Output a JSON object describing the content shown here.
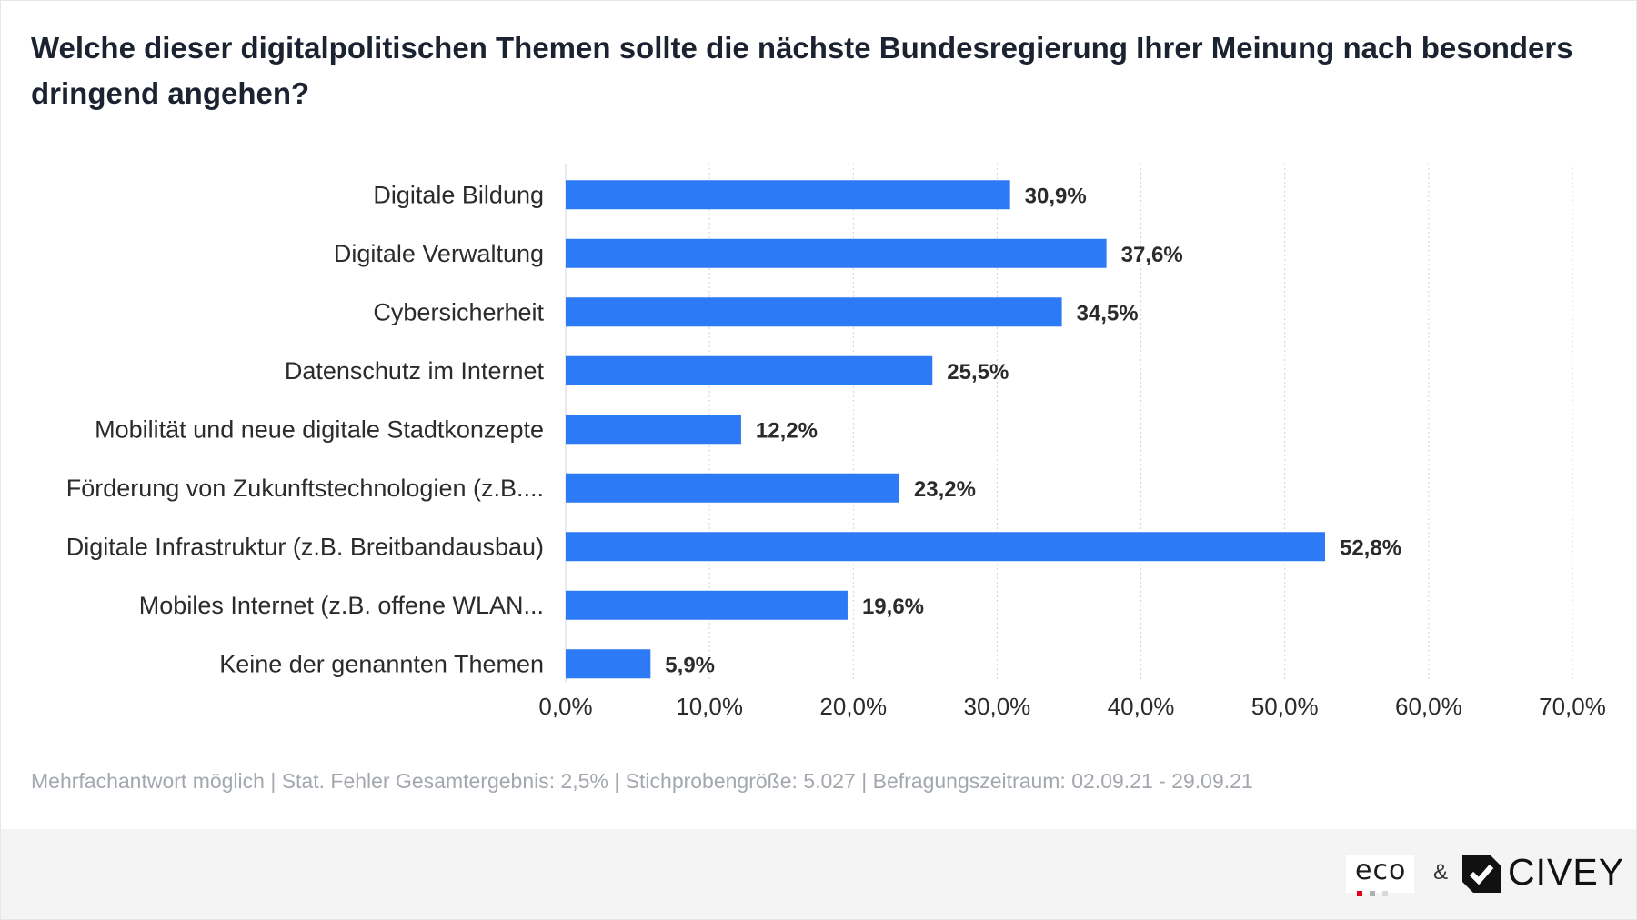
{
  "title": "Welche dieser digitalpolitischen Themen sollte die nächste Bundesregierung Ihrer Meinung nach besonders dringend angehen?",
  "footnote": "Mehrfachantwort möglich | Stat. Fehler Gesamtergebnis: 2,5% | Stichprobengröße: 5.027 | Befragungszeitraum: 02.09.21 - 29.09.21",
  "footer": {
    "logo_eco": "eco",
    "ampersand": "&",
    "logo_civey": "CIVEY"
  },
  "colors": {
    "bar": "#2d7af7",
    "grid": "#d3d3d3",
    "eco_dots": [
      "#e2001a",
      "#b0b0b0",
      "#d9d9d9"
    ]
  },
  "chart_data": {
    "type": "bar",
    "orientation": "horizontal",
    "title": "Welche dieser digitalpolitischen Themen sollte die nächste Bundesregierung Ihrer Meinung nach besonders dringend angehen?",
    "categories": [
      "Digitale Bildung",
      "Digitale Verwaltung",
      "Cybersicherheit",
      "Datenschutz im Internet",
      "Mobilität und neue digitale Stadtkonzepte",
      "Förderung von Zukunftstechnologien (z.B....",
      "Digitale Infrastruktur (z.B. Breitbandausbau)",
      "Mobiles Internet (z.B. offene WLAN...",
      "Keine der genannten Themen"
    ],
    "values": [
      30.9,
      37.6,
      34.5,
      25.5,
      12.2,
      23.2,
      52.8,
      19.6,
      5.9
    ],
    "value_labels": [
      "30,9%",
      "37,6%",
      "34,5%",
      "25,5%",
      "12,2%",
      "23,2%",
      "52,8%",
      "19,6%",
      "5,9%"
    ],
    "xlim": [
      0,
      70
    ],
    "xticks": [
      0,
      10,
      20,
      30,
      40,
      50,
      60,
      70
    ],
    "xtick_labels": [
      "0,0%",
      "10,0%",
      "20,0%",
      "30,0%",
      "40,0%",
      "50,0%",
      "60,0%",
      "70,0%"
    ],
    "xlabel": "",
    "ylabel": "",
    "grid": true,
    "legend": "none"
  }
}
